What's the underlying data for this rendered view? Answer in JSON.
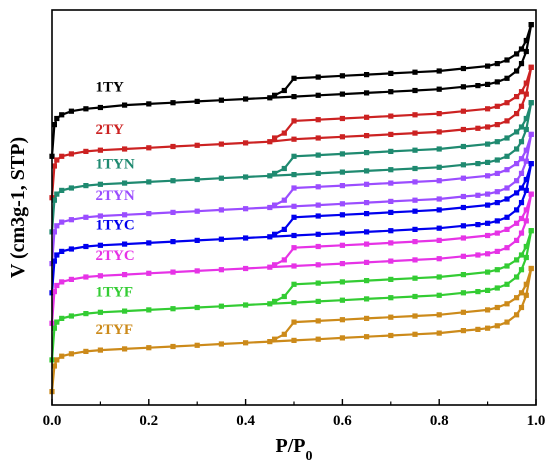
{
  "chart_data": {
    "type": "line",
    "xlabel": "P/P",
    "xlabel_sub": "0",
    "ylabel": "V (cm3g-1, STP)",
    "xlim": [
      0,
      1.0
    ],
    "x_ticks": [
      "0.0",
      "0.2",
      "0.4",
      "0.6",
      "0.8",
      "1.0"
    ],
    "y_ticks_labeled": false,
    "grid": false,
    "legend": "inline labels",
    "series": [
      {
        "name": "1TY",
        "color": "#000000",
        "adsorption": {
          "x": [
            0.0,
            0.005,
            0.01,
            0.02,
            0.04,
            0.07,
            0.1,
            0.15,
            0.2,
            0.25,
            0.3,
            0.35,
            0.4,
            0.45,
            0.5,
            0.55,
            0.6,
            0.65,
            0.7,
            0.75,
            0.8,
            0.85,
            0.88,
            0.9,
            0.92,
            0.94,
            0.96,
            0.97,
            0.98,
            0.99
          ],
          "y": [
            92,
            118,
            123,
            126,
            129,
            131,
            132,
            134,
            135,
            136,
            137,
            138,
            139,
            140,
            141,
            142,
            143,
            144,
            145,
            146,
            147,
            149,
            150,
            151,
            153,
            156,
            162,
            168,
            178,
            200
          ]
        },
        "desorption": {
          "x": [
            0.99,
            0.98,
            0.97,
            0.96,
            0.94,
            0.92,
            0.9,
            0.85,
            0.8,
            0.75,
            0.7,
            0.65,
            0.6,
            0.55,
            0.5,
            0.48,
            0.46
          ],
          "y": [
            200,
            187,
            180,
            176,
            171,
            168,
            166,
            164,
            162,
            161,
            160,
            159,
            158,
            157,
            156,
            146,
            142
          ]
        }
      },
      {
        "name": "2TY",
        "color": "#cc2222",
        "adsorption": {
          "x": [
            0.0,
            0.005,
            0.01,
            0.02,
            0.04,
            0.07,
            0.1,
            0.15,
            0.2,
            0.25,
            0.3,
            0.35,
            0.4,
            0.45,
            0.5,
            0.55,
            0.6,
            0.65,
            0.7,
            0.75,
            0.8,
            0.85,
            0.88,
            0.9,
            0.92,
            0.94,
            0.96,
            0.97,
            0.98,
            0.99
          ],
          "y": [
            58,
            84,
            89,
            92,
            94,
            96,
            97,
            98,
            99,
            100,
            101,
            102,
            103,
            104,
            106,
            107,
            108,
            109,
            110,
            111,
            112,
            114,
            115,
            116,
            118,
            121,
            127,
            133,
            143,
            165
          ]
        },
        "desorption": {
          "x": [
            0.99,
            0.98,
            0.97,
            0.96,
            0.94,
            0.92,
            0.9,
            0.85,
            0.8,
            0.75,
            0.7,
            0.65,
            0.6,
            0.55,
            0.5,
            0.48,
            0.46
          ],
          "y": [
            165,
            152,
            145,
            141,
            136,
            133,
            131,
            129,
            127,
            126,
            125,
            124,
            123,
            122,
            121,
            111,
            107
          ]
        }
      },
      {
        "name": "1TYN",
        "color": "#1f8a70",
        "adsorption": {
          "x": [
            0.0,
            0.005,
            0.01,
            0.02,
            0.04,
            0.07,
            0.1,
            0.15,
            0.2,
            0.25,
            0.3,
            0.35,
            0.4,
            0.45,
            0.5,
            0.55,
            0.6,
            0.65,
            0.7,
            0.75,
            0.8,
            0.85,
            0.88,
            0.9,
            0.92,
            0.94,
            0.96,
            0.97,
            0.98,
            0.99
          ],
          "y": [
            30,
            56,
            61,
            64,
            66,
            68,
            69,
            70,
            71,
            72,
            73,
            74,
            75,
            76,
            77,
            78,
            79,
            80,
            81,
            82,
            83,
            85,
            86,
            87,
            89,
            92,
            98,
            104,
            114,
            136
          ]
        },
        "desorption": {
          "x": [
            0.99,
            0.98,
            0.97,
            0.96,
            0.94,
            0.92,
            0.9,
            0.85,
            0.8,
            0.75,
            0.7,
            0.65,
            0.6,
            0.55,
            0.5,
            0.48,
            0.46
          ],
          "y": [
            136,
            123,
            116,
            112,
            107,
            104,
            102,
            100,
            98,
            97,
            96,
            95,
            94,
            93,
            92,
            82,
            78
          ]
        }
      },
      {
        "name": "2TYN",
        "color": "#9b4dff",
        "adsorption": {
          "x": [
            0.0,
            0.005,
            0.01,
            0.02,
            0.04,
            0.07,
            0.1,
            0.15,
            0.2,
            0.25,
            0.3,
            0.35,
            0.4,
            0.45,
            0.5,
            0.55,
            0.6,
            0.65,
            0.7,
            0.75,
            0.8,
            0.85,
            0.88,
            0.9,
            0.92,
            0.94,
            0.96,
            0.97,
            0.98,
            0.99
          ],
          "y": [
            4,
            30,
            35,
            38,
            40,
            42,
            43,
            44,
            45,
            46,
            47,
            48,
            49,
            50,
            51,
            52,
            53,
            54,
            55,
            56,
            57,
            59,
            60,
            61,
            63,
            66,
            72,
            78,
            88,
            110
          ]
        },
        "desorption": {
          "x": [
            0.99,
            0.98,
            0.97,
            0.96,
            0.94,
            0.92,
            0.9,
            0.85,
            0.8,
            0.75,
            0.7,
            0.65,
            0.6,
            0.55,
            0.5,
            0.48,
            0.46
          ],
          "y": [
            110,
            97,
            90,
            86,
            81,
            78,
            76,
            74,
            72,
            71,
            70,
            69,
            68,
            67,
            66,
            56,
            52
          ]
        }
      },
      {
        "name": "1TYC",
        "color": "#0000ee",
        "adsorption": {
          "x": [
            0.0,
            0.005,
            0.01,
            0.02,
            0.04,
            0.07,
            0.1,
            0.15,
            0.2,
            0.25,
            0.3,
            0.35,
            0.4,
            0.45,
            0.5,
            0.55,
            0.6,
            0.65,
            0.7,
            0.75,
            0.8,
            0.85,
            0.88,
            0.9,
            0.92,
            0.94,
            0.96,
            0.97,
            0.98,
            0.99
          ],
          "y": [
            -20,
            6,
            11,
            14,
            16,
            18,
            19,
            20,
            21,
            22,
            23,
            24,
            25,
            26,
            27,
            28,
            29,
            30,
            31,
            32,
            33,
            35,
            36,
            37,
            39,
            42,
            48,
            54,
            64,
            86
          ]
        },
        "desorption": {
          "x": [
            0.99,
            0.98,
            0.97,
            0.96,
            0.94,
            0.92,
            0.9,
            0.85,
            0.8,
            0.75,
            0.7,
            0.65,
            0.6,
            0.55,
            0.5,
            0.48,
            0.46
          ],
          "y": [
            86,
            73,
            66,
            62,
            57,
            54,
            52,
            50,
            48,
            47,
            46,
            45,
            44,
            43,
            42,
            32,
            28
          ]
        }
      },
      {
        "name": "2TYC",
        "color": "#e633e6",
        "adsorption": {
          "x": [
            0.0,
            0.005,
            0.01,
            0.02,
            0.04,
            0.07,
            0.1,
            0.15,
            0.2,
            0.25,
            0.3,
            0.35,
            0.4,
            0.45,
            0.5,
            0.55,
            0.6,
            0.65,
            0.7,
            0.75,
            0.8,
            0.85,
            0.88,
            0.9,
            0.92,
            0.94,
            0.96,
            0.97,
            0.98,
            0.99
          ],
          "y": [
            -45,
            -19,
            -14,
            -11,
            -9,
            -7,
            -6,
            -5,
            -4,
            -3,
            -2,
            -1,
            0,
            1,
            2,
            3,
            4,
            5,
            6,
            7,
            8,
            10,
            11,
            12,
            14,
            17,
            23,
            29,
            39,
            61
          ]
        },
        "desorption": {
          "x": [
            0.99,
            0.98,
            0.97,
            0.96,
            0.94,
            0.92,
            0.9,
            0.85,
            0.8,
            0.75,
            0.7,
            0.65,
            0.6,
            0.55,
            0.5,
            0.48,
            0.46
          ],
          "y": [
            61,
            48,
            41,
            37,
            32,
            29,
            27,
            25,
            23,
            22,
            21,
            20,
            19,
            18,
            17,
            7,
            3
          ]
        }
      },
      {
        "name": "1TYF",
        "color": "#33cc33",
        "adsorption": {
          "x": [
            0.0,
            0.005,
            0.01,
            0.02,
            0.04,
            0.07,
            0.1,
            0.15,
            0.2,
            0.25,
            0.3,
            0.35,
            0.4,
            0.45,
            0.5,
            0.55,
            0.6,
            0.65,
            0.7,
            0.75,
            0.8,
            0.85,
            0.88,
            0.9,
            0.92,
            0.94,
            0.96,
            0.97,
            0.98,
            0.99
          ],
          "y": [
            -75,
            -49,
            -44,
            -41,
            -39,
            -37,
            -36,
            -35,
            -34,
            -33,
            -32,
            -31,
            -30,
            -29,
            -28,
            -27,
            -26,
            -25,
            -24,
            -23,
            -22,
            -20,
            -19,
            -18,
            -16,
            -13,
            -7,
            -1,
            9,
            31
          ]
        },
        "desorption": {
          "x": [
            0.99,
            0.98,
            0.97,
            0.96,
            0.94,
            0.92,
            0.9,
            0.85,
            0.8,
            0.75,
            0.7,
            0.65,
            0.6,
            0.55,
            0.5,
            0.48,
            0.46
          ],
          "y": [
            31,
            18,
            11,
            7,
            2,
            -1,
            -3,
            -5,
            -7,
            -8,
            -9,
            -10,
            -11,
            -12,
            -13,
            -23,
            -27
          ]
        }
      },
      {
        "name": "2TYF",
        "color": "#cc8a1a",
        "adsorption": {
          "x": [
            0.0,
            0.005,
            0.01,
            0.02,
            0.04,
            0.07,
            0.1,
            0.15,
            0.2,
            0.25,
            0.3,
            0.35,
            0.4,
            0.45,
            0.5,
            0.55,
            0.6,
            0.65,
            0.7,
            0.75,
            0.8,
            0.85,
            0.88,
            0.9,
            0.92,
            0.94,
            0.96,
            0.97,
            0.98,
            0.99
          ],
          "y": [
            -101,
            -80,
            -75,
            -72,
            -70,
            -68,
            -67,
            -66,
            -65,
            -64,
            -63,
            -62,
            -61,
            -60,
            -59,
            -58,
            -57,
            -56,
            -55,
            -54,
            -53,
            -51,
            -50,
            -49,
            -47,
            -44,
            -38,
            -32,
            -22,
            0
          ]
        },
        "desorption": {
          "x": [
            0.99,
            0.98,
            0.97,
            0.96,
            0.94,
            0.92,
            0.9,
            0.85,
            0.8,
            0.75,
            0.7,
            0.65,
            0.6,
            0.55,
            0.5,
            0.48,
            0.46
          ],
          "y": [
            0,
            -13,
            -20,
            -24,
            -29,
            -32,
            -34,
            -36,
            -38,
            -39,
            -40,
            -41,
            -42,
            -43,
            -44,
            -54,
            -58
          ]
        }
      }
    ],
    "series_label_x": 0.09
  }
}
